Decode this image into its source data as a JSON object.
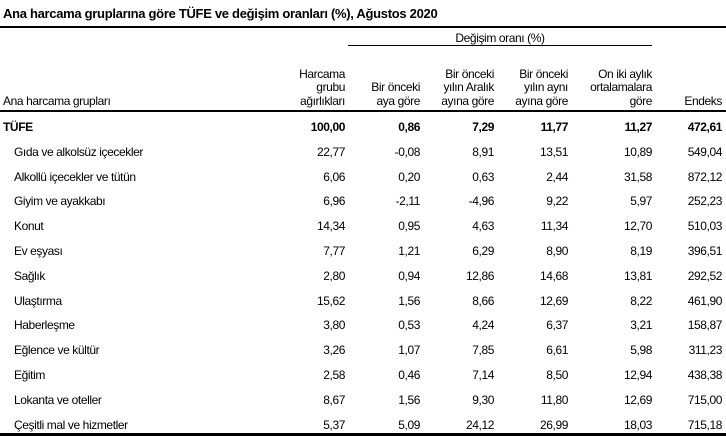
{
  "title": "Ana harcama gruplarına göre TÜFE ve değişim oranları (%), Ağustos 2020",
  "group_header": "Değişim oranı (%)",
  "headers": {
    "name": "Ana harcama grupları",
    "weights": [
      "Harcama",
      "grubu",
      "ağırlıkları"
    ],
    "monthly": [
      "Bir önceki",
      "aya göre"
    ],
    "ytd": [
      "Bir önceki",
      "yılın Aralık",
      "ayına göre"
    ],
    "yoy": [
      "Bir önceki",
      "yılın aynı",
      "ayına göre"
    ],
    "avg12": [
      "On iki aylık",
      "ortalamalara",
      "göre"
    ],
    "index": "Endeks"
  },
  "rows": [
    {
      "name": "TÜFE",
      "values": [
        "100,00",
        "0,86",
        "7,29",
        "11,77",
        "11,27",
        "472,61"
      ]
    },
    {
      "name": "Gıda ve alkolsüz içecekler",
      "values": [
        "22,77",
        "-0,08",
        "8,91",
        "13,51",
        "10,89",
        "549,04"
      ]
    },
    {
      "name": "Alkollü içecekler ve tütün",
      "values": [
        "6,06",
        "0,20",
        "0,63",
        "2,44",
        "31,58",
        "872,12"
      ]
    },
    {
      "name": "Giyim ve ayakkabı",
      "values": [
        "6,96",
        "-2,11",
        "-4,96",
        "9,22",
        "5,97",
        "252,23"
      ]
    },
    {
      "name": "Konut",
      "values": [
        "14,34",
        "0,95",
        "4,63",
        "11,34",
        "12,70",
        "510,03"
      ]
    },
    {
      "name": "Ev eşyası",
      "values": [
        "7,77",
        "1,21",
        "6,29",
        "8,90",
        "8,19",
        "396,51"
      ]
    },
    {
      "name": "Sağlık",
      "values": [
        "2,80",
        "0,94",
        "12,86",
        "14,68",
        "13,81",
        "292,52"
      ]
    },
    {
      "name": "Ulaştırma",
      "values": [
        "15,62",
        "1,56",
        "8,66",
        "12,69",
        "8,22",
        "461,90"
      ]
    },
    {
      "name": "Haberleşme",
      "values": [
        "3,80",
        "0,53",
        "4,24",
        "6,37",
        "3,21",
        "158,87"
      ]
    },
    {
      "name": "Eğlence ve kültür",
      "values": [
        "3,26",
        "1,07",
        "7,85",
        "6,61",
        "5,98",
        "311,23"
      ]
    },
    {
      "name": "Eğitim",
      "values": [
        "2,58",
        "0,46",
        "7,14",
        "8,50",
        "12,94",
        "438,38"
      ]
    },
    {
      "name": "Lokanta ve oteller",
      "values": [
        "8,67",
        "1,56",
        "9,30",
        "11,80",
        "12,69",
        "715,00"
      ]
    },
    {
      "name": "Çeşitli mal ve hizmetler",
      "values": [
        "5,37",
        "5,09",
        "24,12",
        "26,99",
        "18,03",
        "715,18"
      ]
    }
  ]
}
